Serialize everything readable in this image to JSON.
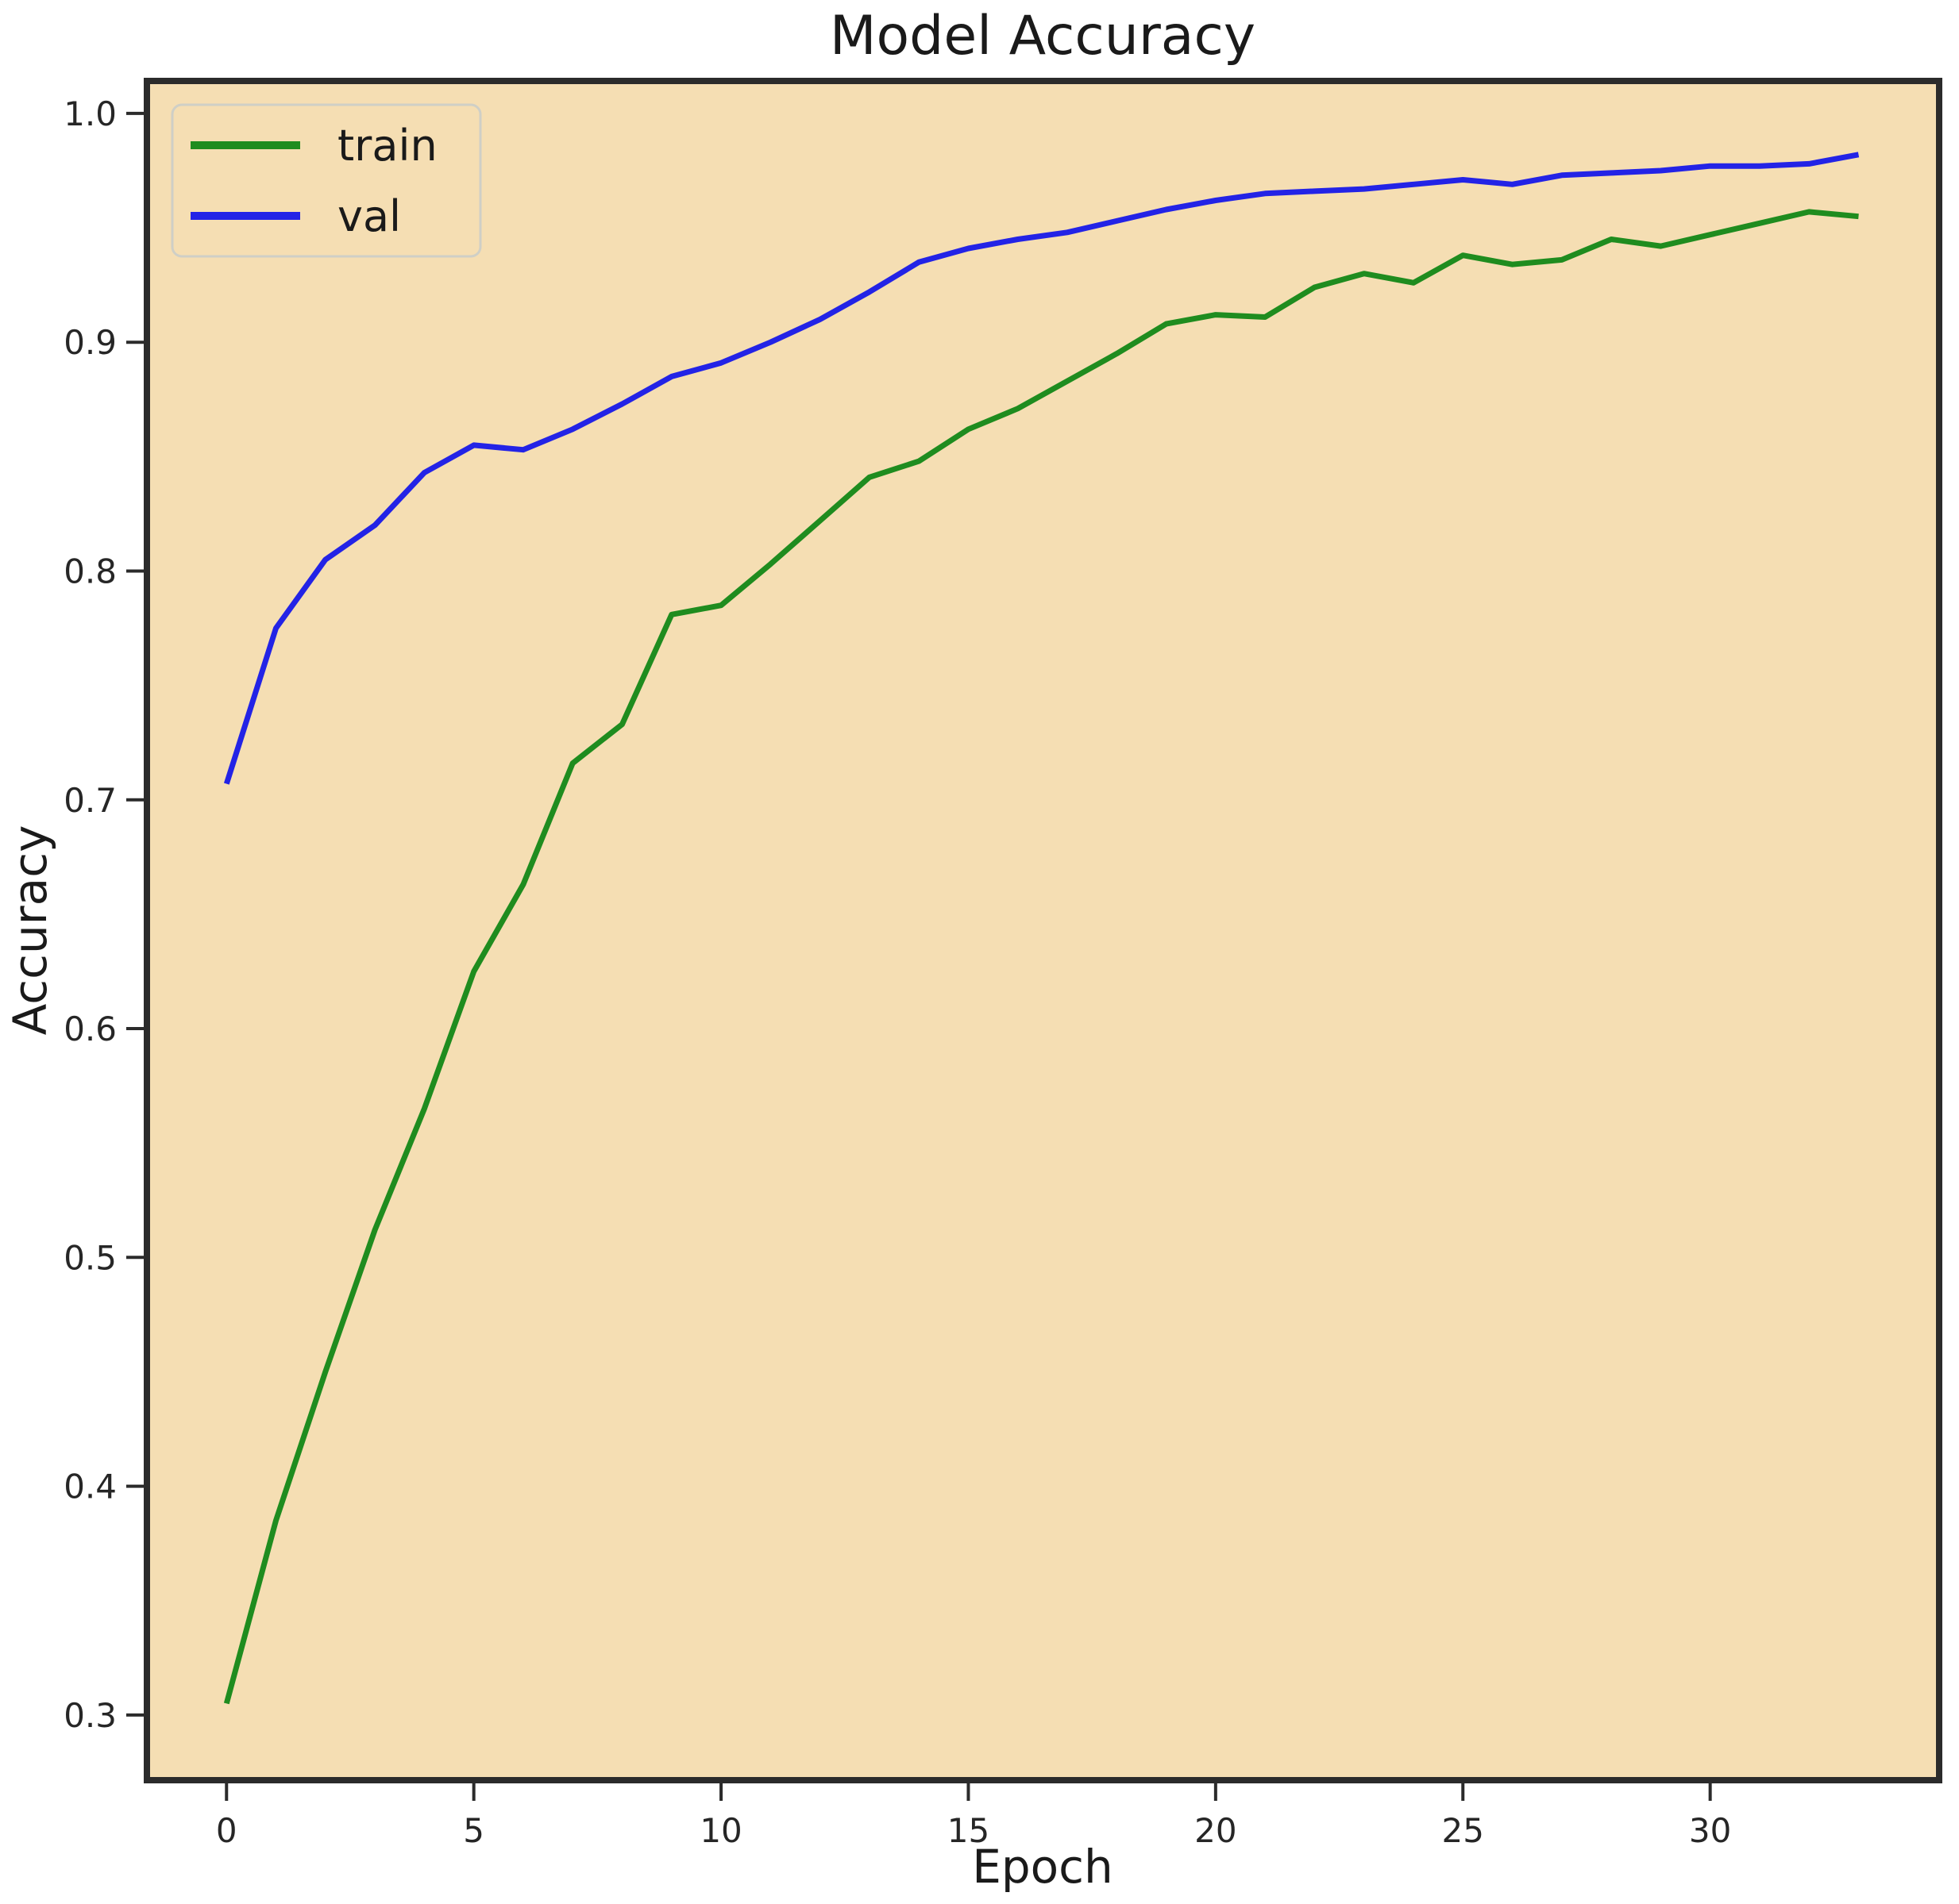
{
  "title": "Model Accuracy",
  "xlabel": "Epoch",
  "ylabel": "Accuracy",
  "colors": {
    "plot_background": "#f5deb3",
    "figure_background": "#ffffff",
    "spine": "#2b2b2b",
    "train_line": "#1f8c1f",
    "val_line": "#2323e6",
    "legend_border": "#cfcfc6",
    "legend_background": "#f5deb3",
    "text": "#1a1a1a"
  },
  "legend": {
    "items": [
      {
        "label": "train",
        "color": "#1f8c1f"
      },
      {
        "label": "val",
        "color": "#2323e6"
      }
    ]
  },
  "axes": {
    "x_tick_labels": [
      "0",
      "5",
      "10",
      "15",
      "20",
      "25",
      "30"
    ],
    "x_tick_values": [
      0,
      5,
      10,
      15,
      20,
      25,
      30
    ],
    "y_tick_labels": [
      "0.3",
      "0.4",
      "0.5",
      "0.6",
      "0.7",
      "0.8",
      "0.9",
      "1.0"
    ],
    "y_tick_values": [
      0.3,
      0.4,
      0.5,
      0.6,
      0.7,
      0.8,
      0.9,
      1.0
    ]
  },
  "chart_data": {
    "type": "line",
    "title": "Model Accuracy",
    "xlabel": "Epoch",
    "ylabel": "Accuracy",
    "legend_position": "upper left",
    "grid": false,
    "xlim": [
      -1.61,
      34.63
    ],
    "ylim": [
      0.2715,
      1.0142
    ],
    "x": [
      0,
      1,
      2,
      3,
      4,
      5,
      6,
      7,
      8,
      9,
      10,
      11,
      12,
      13,
      14,
      15,
      16,
      17,
      18,
      19,
      20,
      21,
      22,
      23,
      24,
      25,
      26,
      27,
      28,
      29,
      30,
      31,
      32,
      33
    ],
    "series": [
      {
        "name": "train",
        "color": "#1f8c1f",
        "values": [
          0.305,
          0.385,
          0.45,
          0.512,
          0.565,
          0.625,
          0.663,
          0.716,
          0.733,
          0.781,
          0.785,
          0.803,
          0.822,
          0.841,
          0.848,
          0.862,
          0.871,
          0.883,
          0.895,
          0.908,
          0.912,
          0.911,
          0.924,
          0.93,
          0.926,
          0.938,
          0.934,
          0.936,
          0.945,
          0.942,
          0.947,
          0.952,
          0.957,
          0.955
        ]
      },
      {
        "name": "val",
        "color": "#2323e6",
        "values": [
          0.707,
          0.775,
          0.805,
          0.82,
          0.843,
          0.855,
          0.853,
          0.862,
          0.873,
          0.885,
          0.891,
          0.9,
          0.91,
          0.922,
          0.935,
          0.941,
          0.945,
          0.948,
          0.953,
          0.958,
          0.962,
          0.965,
          0.966,
          0.967,
          0.969,
          0.971,
          0.969,
          0.973,
          0.974,
          0.975,
          0.977,
          0.977,
          0.978,
          0.982
        ]
      }
    ]
  }
}
